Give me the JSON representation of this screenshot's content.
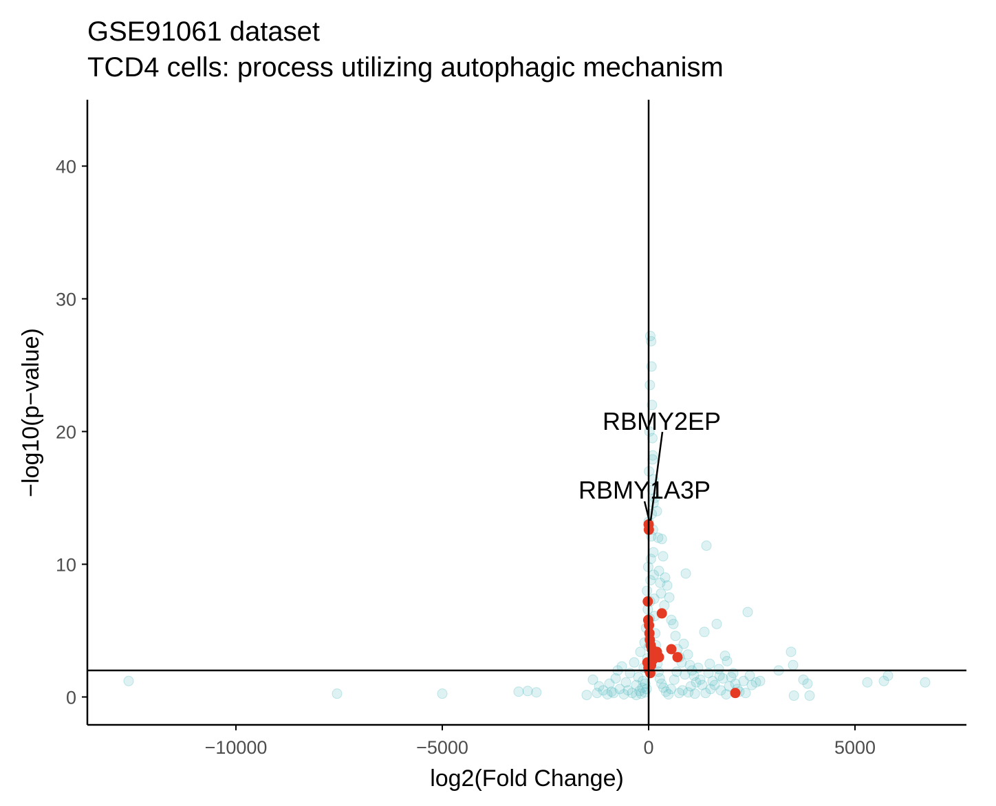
{
  "chart_data": {
    "type": "scatter",
    "title": "GSE91061 dataset",
    "subtitle": "TCD4 cells: process utilizing autophagic mechanism",
    "xlabel": "log2(Fold Change)",
    "ylabel": "−log10(p−value)",
    "xlim": [
      -13600,
      7700
    ],
    "ylim": [
      -2.1,
      45
    ],
    "xticks": [
      -10000,
      -5000,
      0,
      5000
    ],
    "xtick_labels": [
      "−10000",
      "−5000",
      "0",
      "5000"
    ],
    "yticks": [
      0,
      10,
      20,
      30,
      40
    ],
    "ytick_labels": [
      "0",
      "10",
      "20",
      "30",
      "40"
    ],
    "hline": 2,
    "vline": 0,
    "grid": false,
    "legend": "none",
    "colors": {
      "background_genes": "#5bbcc4",
      "pathway_genes": "#e53a24",
      "axis": "#000000",
      "tick_label": "#4d4d4d"
    },
    "series": [
      {
        "points": [
          [
            -12600,
            1.2
          ],
          [
            -7550,
            0.25
          ],
          [
            -5000,
            0.25
          ],
          [
            -3150,
            0.4
          ],
          [
            -2930,
            0.45
          ],
          [
            -2720,
            0.35
          ],
          [
            -1500,
            0.15
          ],
          [
            -1350,
            1.3
          ],
          [
            -1250,
            0.3
          ],
          [
            -1200,
            0.8
          ],
          [
            -1100,
            0.5
          ],
          [
            -1000,
            0.2
          ],
          [
            -950,
            1.0
          ],
          [
            -900,
            0.4
          ],
          [
            -850,
            0.3
          ],
          [
            -800,
            1.4
          ],
          [
            -750,
            2.0
          ],
          [
            -700,
            0.6
          ],
          [
            -650,
            2.3
          ],
          [
            -600,
            0.2
          ],
          [
            -550,
            1.1
          ],
          [
            -500,
            0.5
          ],
          [
            -450,
            1.8
          ],
          [
            -400,
            0.3
          ],
          [
            -350,
            2.6
          ],
          [
            -300,
            0.9
          ],
          [
            -250,
            1.5
          ],
          [
            -200,
            3.4
          ],
          [
            -150,
            0.7
          ],
          [
            -120,
            2.2
          ],
          [
            -100,
            4.1
          ],
          [
            -80,
            1.0
          ],
          [
            -60,
            5.2
          ],
          [
            -40,
            8.0
          ],
          [
            -20,
            6.6
          ],
          [
            -10,
            9.8
          ],
          [
            0,
            13.2
          ],
          [
            10,
            17.0
          ],
          [
            20,
            20.0
          ],
          [
            30,
            23.5
          ],
          [
            40,
            27.2
          ],
          [
            60,
            26.8
          ],
          [
            70,
            24.9
          ],
          [
            80,
            22.0
          ],
          [
            90,
            19.5
          ],
          [
            100,
            18.2
          ],
          [
            110,
            16.4
          ],
          [
            120,
            14.6
          ],
          [
            150,
            15.0
          ],
          [
            200,
            14.0
          ],
          [
            230,
            12.0
          ],
          [
            250,
            9.5
          ],
          [
            280,
            8.6
          ],
          [
            300,
            7.8
          ],
          [
            320,
            11.9
          ],
          [
            350,
            10.6
          ],
          [
            380,
            6.9
          ],
          [
            400,
            9.0
          ],
          [
            450,
            8.4
          ],
          [
            500,
            7.5
          ],
          [
            550,
            5.8
          ],
          [
            600,
            5.5
          ],
          [
            650,
            4.6
          ],
          [
            700,
            3.6
          ],
          [
            750,
            3.0
          ],
          [
            800,
            2.6
          ],
          [
            850,
            4.0
          ],
          [
            900,
            9.3
          ],
          [
            950,
            3.2
          ],
          [
            1000,
            2.4
          ],
          [
            1050,
            2.0
          ],
          [
            1100,
            1.6
          ],
          [
            1150,
            1.1
          ],
          [
            1200,
            2.2
          ],
          [
            1300,
            0.9
          ],
          [
            1350,
            4.9
          ],
          [
            1400,
            11.4
          ],
          [
            1450,
            1.8
          ],
          [
            1500,
            0.6
          ],
          [
            1550,
            1.2
          ],
          [
            1650,
            5.5
          ],
          [
            1700,
            2.1
          ],
          [
            1750,
            0.5
          ],
          [
            1800,
            1.4
          ],
          [
            1850,
            3.1
          ],
          [
            1900,
            2.7
          ],
          [
            1950,
            0.8
          ],
          [
            2000,
            1.5
          ],
          [
            2100,
            1.0
          ],
          [
            2200,
            0.4
          ],
          [
            2300,
            1.2
          ],
          [
            2400,
            6.4
          ],
          [
            2500,
            0.9
          ],
          [
            2600,
            1.1
          ],
          [
            3150,
            2.0
          ],
          [
            3450,
            3.4
          ],
          [
            3500,
            2.4
          ],
          [
            3520,
            0.1
          ],
          [
            3750,
            1.3
          ],
          [
            3850,
            1.0
          ],
          [
            3900,
            0.1
          ],
          [
            5300,
            1.1
          ],
          [
            5700,
            1.2
          ],
          [
            5800,
            1.6
          ],
          [
            6700,
            1.1
          ],
          [
            -300,
            0.15
          ],
          [
            -220,
            0.45
          ],
          [
            -180,
            0.25
          ],
          [
            -140,
            1.2
          ],
          [
            -90,
            0.35
          ],
          [
            -50,
            0.6
          ],
          [
            -30,
            2.9
          ],
          [
            5,
            3.8
          ],
          [
            15,
            4.4
          ],
          [
            25,
            5.9
          ],
          [
            35,
            7.2
          ],
          [
            45,
            8.8
          ],
          [
            55,
            10.4
          ],
          [
            65,
            12.1
          ],
          [
            75,
            13.8
          ],
          [
            85,
            15.6
          ],
          [
            95,
            17.9
          ],
          [
            105,
            12.6
          ],
          [
            115,
            10.9
          ],
          [
            125,
            9.2
          ],
          [
            135,
            7.4
          ],
          [
            145,
            6.1
          ],
          [
            160,
            4.8
          ],
          [
            175,
            3.9
          ],
          [
            190,
            3.1
          ],
          [
            210,
            2.5
          ],
          [
            240,
            1.9
          ],
          [
            270,
            1.4
          ],
          [
            310,
            1.0
          ],
          [
            360,
            0.7
          ],
          [
            420,
            0.4
          ],
          [
            480,
            0.2
          ],
          [
            540,
            0.6
          ],
          [
            620,
            1.3
          ],
          [
            680,
            1.9
          ],
          [
            740,
            0.3
          ],
          [
            820,
            0.5
          ],
          [
            880,
            1.7
          ],
          [
            960,
            0.35
          ],
          [
            1020,
            0.8
          ],
          [
            1120,
            0.25
          ],
          [
            1250,
            1.3
          ],
          [
            1380,
            0.3
          ],
          [
            1480,
            2.5
          ],
          [
            1600,
            0.9
          ],
          [
            1720,
            1.6
          ],
          [
            1880,
            0.2
          ],
          [
            2050,
            1.8
          ],
          [
            2150,
            0.6
          ],
          [
            2350,
            0.3
          ],
          [
            2450,
            1.6
          ],
          [
            2700,
            1.2
          ]
        ]
      },
      {
        "points": [
          [
            0,
            13.0
          ],
          [
            5,
            12.6
          ],
          [
            -20,
            7.2
          ],
          [
            320,
            6.3
          ],
          [
            -10,
            5.8
          ],
          [
            10,
            5.4
          ],
          [
            20,
            4.8
          ],
          [
            30,
            4.3
          ],
          [
            50,
            3.9
          ],
          [
            80,
            3.6
          ],
          [
            120,
            3.3
          ],
          [
            150,
            3.1
          ],
          [
            200,
            3.4
          ],
          [
            250,
            3.0
          ],
          [
            550,
            3.6
          ],
          [
            700,
            3.0
          ],
          [
            -30,
            2.6
          ],
          [
            -5,
            2.2
          ],
          [
            15,
            2.0
          ],
          [
            40,
            1.8
          ],
          [
            60,
            2.4
          ],
          [
            100,
            2.8
          ],
          [
            2100,
            0.3
          ]
        ]
      }
    ],
    "annotations": [
      {
        "label": "RBMY2EP",
        "point": [
          5,
          12.9
        ]
      },
      {
        "label": "RBMY1A3P",
        "point": [
          -5,
          12.8
        ]
      }
    ]
  }
}
